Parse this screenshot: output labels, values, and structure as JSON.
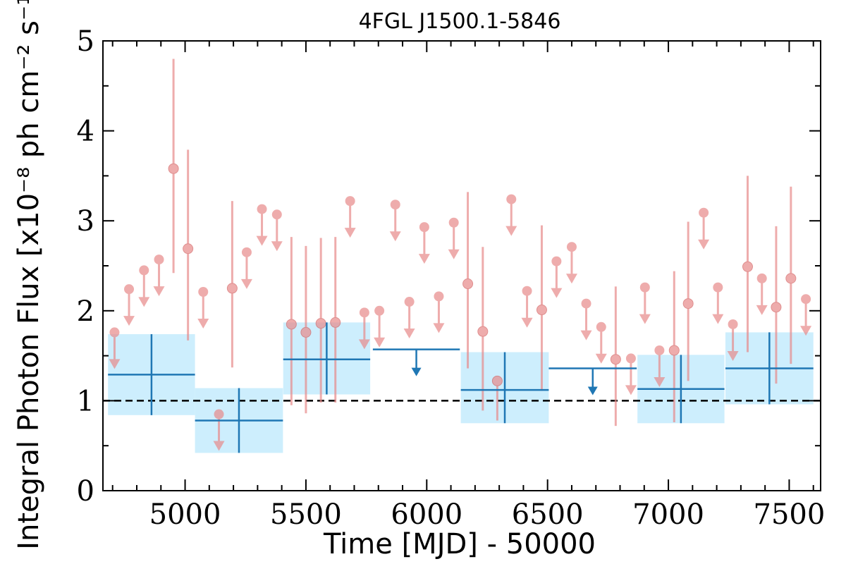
{
  "chart_data": {
    "type": "scatter",
    "title": "4FGL J1500.1-5846",
    "xlabel": "Time [MJD] - 50000",
    "ylabel": "Integral Photon Flux [x10⁻⁸ ph cm⁻² s⁻¹]",
    "xlim": [
      4660,
      7630
    ],
    "ylim": [
      0,
      5
    ],
    "xticks": [
      5000,
      5500,
      6000,
      6500,
      7000,
      7500
    ],
    "yticks": [
      0,
      1,
      2,
      3,
      4,
      5
    ],
    "reference_line": {
      "y": 1.0,
      "style": "dashed",
      "color": "#000000"
    },
    "colors": {
      "coarse": "#1f77b4",
      "coarse_band": "#cdeefd",
      "fine": "#e88a8a"
    },
    "series": [
      {
        "points": [
          {
            "x": 4861,
            "y": 1.29,
            "xerr": 180,
            "yerr": [
              0.45,
              0.45
            ]
          },
          {
            "x": 5223,
            "y": 0.78,
            "xerr": 182,
            "yerr": [
              0.36,
              0.36
            ]
          },
          {
            "x": 5586,
            "y": 1.46,
            "xerr": 180,
            "yerr": [
              0.39,
              0.41
            ]
          },
          {
            "x": 6323,
            "y": 1.12,
            "xerr": 182,
            "yerr": [
              0.37,
              0.42
            ]
          },
          {
            "x": 7052,
            "y": 1.13,
            "xerr": 180,
            "yerr": [
              0.38,
              0.38
            ]
          },
          {
            "x": 7418,
            "y": 1.36,
            "xerr": 182,
            "yerr": [
              0.4,
              0.4
            ]
          }
        ],
        "upper_limits": [
          {
            "x": 5957,
            "y": 1.57,
            "xerr": 180
          },
          {
            "x": 6687,
            "y": 1.36,
            "xerr": 182
          }
        ]
      },
      {
        "points": [
          {
            "x": 4952,
            "y": 3.58,
            "yerr": [
              1.16,
              1.22
            ]
          },
          {
            "x": 5012,
            "y": 2.69,
            "yerr": [
              1.02,
              1.1
            ]
          },
          {
            "x": 5195,
            "y": 2.25,
            "yerr": [
              0.88,
              0.97
            ]
          },
          {
            "x": 5440,
            "y": 1.85,
            "yerr": [
              0.9,
              0.97
            ]
          },
          {
            "x": 5500,
            "y": 1.76,
            "yerr": [
              0.9,
              0.96
            ]
          },
          {
            "x": 5562,
            "y": 1.86,
            "yerr": [
              0.88,
              0.95
            ]
          },
          {
            "x": 5622,
            "y": 1.87,
            "yerr": [
              0.89,
              0.95
            ]
          },
          {
            "x": 6170,
            "y": 2.3,
            "yerr": [
              0.94,
              1.02
            ]
          },
          {
            "x": 6232,
            "y": 1.77,
            "yerr": [
              0.88,
              0.94
            ]
          },
          {
            "x": 6292,
            "y": 1.22,
            "yerr": [
              0.44,
              0.0
            ]
          },
          {
            "x": 6476,
            "y": 2.01,
            "yerr": [
              0.9,
              0.94
            ]
          },
          {
            "x": 6782,
            "y": 1.46,
            "yerr": [
              0.74,
              0.81
            ]
          },
          {
            "x": 7024,
            "y": 1.56,
            "yerr": [
              0.8,
              0.88
            ]
          },
          {
            "x": 7082,
            "y": 2.08,
            "yerr": [
              0.86,
              0.91
            ]
          },
          {
            "x": 7328,
            "y": 2.49,
            "yerr": [
              0.95,
              1.01
            ]
          },
          {
            "x": 7446,
            "y": 2.04,
            "yerr": [
              0.85,
              0.9
            ]
          },
          {
            "x": 7507,
            "y": 2.36,
            "yerr": [
              0.95,
              1.02
            ]
          }
        ],
        "upper_limits": [
          {
            "x": 4708,
            "y": 1.76
          },
          {
            "x": 4768,
            "y": 2.24
          },
          {
            "x": 4830,
            "y": 2.45
          },
          {
            "x": 4892,
            "y": 2.57
          },
          {
            "x": 5075,
            "y": 2.21
          },
          {
            "x": 5140,
            "y": 0.85
          },
          {
            "x": 5255,
            "y": 2.65
          },
          {
            "x": 5318,
            "y": 3.13
          },
          {
            "x": 5380,
            "y": 3.07
          },
          {
            "x": 5683,
            "y": 3.22
          },
          {
            "x": 5742,
            "y": 1.98
          },
          {
            "x": 5804,
            "y": 2.0
          },
          {
            "x": 5870,
            "y": 3.18
          },
          {
            "x": 5928,
            "y": 2.1
          },
          {
            "x": 5990,
            "y": 2.93
          },
          {
            "x": 6050,
            "y": 2.16
          },
          {
            "x": 6112,
            "y": 2.98
          },
          {
            "x": 6350,
            "y": 3.24
          },
          {
            "x": 6415,
            "y": 2.22
          },
          {
            "x": 6537,
            "y": 2.55
          },
          {
            "x": 6600,
            "y": 2.71
          },
          {
            "x": 6660,
            "y": 2.08
          },
          {
            "x": 6722,
            "y": 1.82
          },
          {
            "x": 6845,
            "y": 1.47
          },
          {
            "x": 6903,
            "y": 2.26
          },
          {
            "x": 6963,
            "y": 1.56
          },
          {
            "x": 7146,
            "y": 3.09
          },
          {
            "x": 7205,
            "y": 2.26
          },
          {
            "x": 7267,
            "y": 1.85
          },
          {
            "x": 7387,
            "y": 2.36
          },
          {
            "x": 7569,
            "y": 2.13
          }
        ]
      }
    ]
  }
}
